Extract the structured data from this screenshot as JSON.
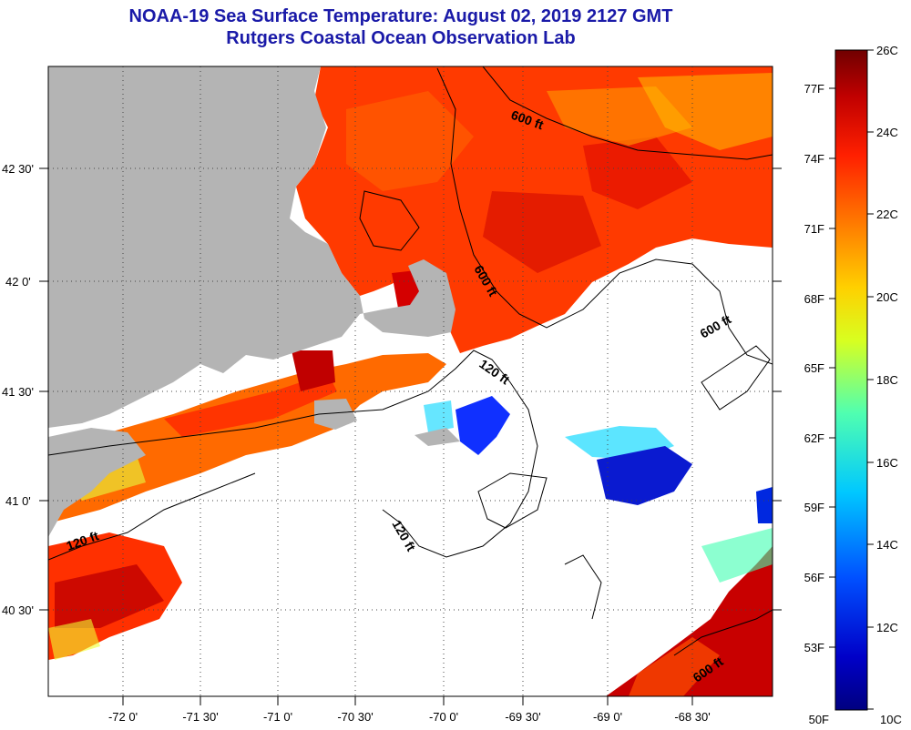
{
  "header": {
    "title_line1": "NOAA-19 Sea Surface Temperature:  August 02, 2019 2127 GMT",
    "title_line2": "Rutgers Coastal Ocean Observation Lab"
  },
  "axes": {
    "longitude_labels": [
      "-72 0'",
      "-71 30'",
      "-71 0'",
      "-70 30'",
      "-70 0'",
      "-69 30'",
      "-69 0'",
      "-68 30'"
    ],
    "latitude_labels": [
      "42 30'",
      "42 0'",
      "41 30'",
      "41 0'",
      "40 30'"
    ]
  },
  "contours": {
    "labels": [
      "600 ft",
      "600 ft",
      "600 ft",
      "600 ft",
      "120 ft",
      "120 ft",
      "120 ft"
    ]
  },
  "colorbar": {
    "celsius_labels": [
      "26C",
      "24C",
      "22C",
      "20C",
      "18C",
      "16C",
      "14C",
      "12C",
      "10C"
    ],
    "fahrenheit_labels": [
      "77F",
      "74F",
      "71F",
      "68F",
      "65F",
      "62F",
      "59F",
      "56F",
      "53F",
      "50F"
    ],
    "colors": [
      "#7a0000",
      "#c80000",
      "#ff2800",
      "#ff7a00",
      "#ffcc00",
      "#e6ff00",
      "#7cff7a",
      "#00e6ff",
      "#0090ff",
      "#0030ff",
      "#0000b0",
      "#000080"
    ]
  },
  "colors": {
    "land": "#b4b4b4",
    "no_data": "#ffffff",
    "title": "#1a1aa8"
  }
}
